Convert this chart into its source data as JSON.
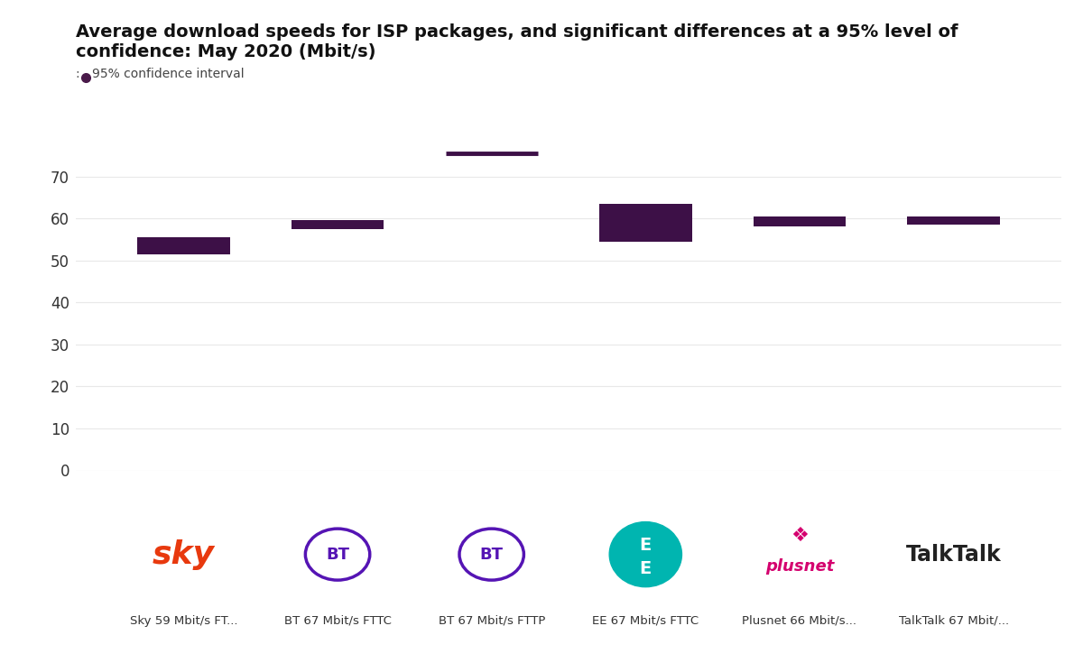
{
  "title_line1": "Average download speeds for ISP packages, and significant differences at a 95% level of",
  "title_line2": "confidence: May 2020 (Mbit/s)",
  "legend_label": "95% confidence interval",
  "legend_dot_color": "#4a1a4a",
  "background_color": "#ffffff",
  "ylim": [
    0,
    80
  ],
  "yticks": [
    0,
    10,
    20,
    30,
    40,
    50,
    60,
    70
  ],
  "box_color": "#3d1047",
  "line_color": "#3d1047",
  "grid_color": "#e8e8e8",
  "tick_color": "#333333",
  "isps": [
    {
      "name": "Sky 59 Mbit/s FT...",
      "x": 0,
      "ci_low": 51.5,
      "ci_high": 55.5,
      "type": "box"
    },
    {
      "name": "BT 67 Mbit/s FTTC",
      "x": 1,
      "ci_low": 57.5,
      "ci_high": 59.5,
      "type": "box"
    },
    {
      "name": "BT 67 Mbit/s FTTP",
      "x": 2,
      "ci_low": 75.2,
      "ci_high": 75.8,
      "type": "line"
    },
    {
      "name": "EE 67 Mbit/s FTTC",
      "x": 3,
      "ci_low": 54.5,
      "ci_high": 63.5,
      "type": "box"
    },
    {
      "name": "Plusnet 66 Mbit/s...",
      "x": 4,
      "ci_low": 58.0,
      "ci_high": 60.5,
      "type": "box"
    },
    {
      "name": "TalkTalk 67 Mbit/...",
      "x": 5,
      "ci_low": 58.5,
      "ci_high": 60.5,
      "type": "box"
    }
  ],
  "sky_color": "#e8390e",
  "bt_circle_color": "#5514b4",
  "ee_bg_color": "#00b5b0",
  "plusnet_color": "#d4006e",
  "talktalk_color": "#222222",
  "label_fontsize": 10,
  "logo_fontsize": 18,
  "bt_logo_fontsize": 14,
  "ee_logo_fontsize": 13,
  "plusnet_logo_fontsize": 12,
  "talktalk_logo_fontsize": 15
}
